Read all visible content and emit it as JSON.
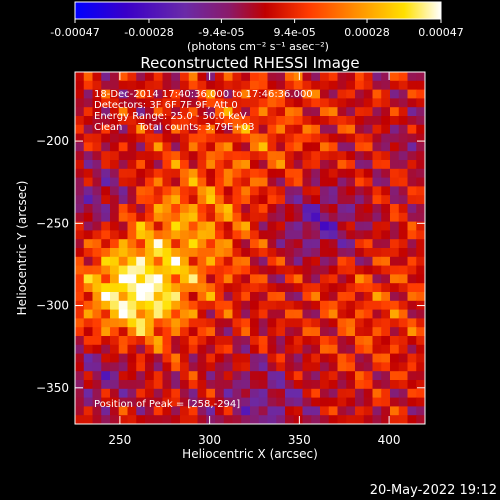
{
  "chart_data": {
    "type": "heatmap",
    "title": "Reconstructed RHESSI Image",
    "xlabel": "Heliocentric X (arcsec)",
    "ylabel": "Heliocentric Y (arcsec)",
    "xlim": [
      225,
      420
    ],
    "ylim": [
      -372,
      -158
    ],
    "x_ticks": [
      250,
      300,
      350,
      400
    ],
    "y_ticks": [
      -200,
      -250,
      -300,
      -350
    ],
    "colorbar": {
      "ticks": [
        "-0.00047",
        "-0.00028",
        "-9.4e-05",
        "9.4e-05",
        "0.00028",
        "0.00047"
      ],
      "tick_values": [
        -0.00047,
        -0.00028,
        -9.4e-05,
        9.4e-05,
        0.00028,
        0.00047
      ],
      "range": [
        -0.00047,
        0.00047
      ],
      "units": "(photons cm⁻² s⁻¹ asec⁻²)"
    },
    "annotations": [
      "18-Dec-2014 17:40:36.000 to 17:46:36.000",
      "Detectors: 3F 6F 7F 9F, Att 0",
      "Energy Range: 25.0 - 50.0 keV",
      "Clean     Total counts: 3.79E+03"
    ],
    "peak_label": "Position of Peak = [258,-294]",
    "peak": [
      258,
      -294
    ],
    "grid": false,
    "colormap": [
      "#0000ff",
      "#3a00c8",
      "#6a2aa8",
      "#8a1a6a",
      "#c00000",
      "#ff3c00",
      "#ff9600",
      "#ffe000",
      "#ffffff"
    ]
  },
  "timestamp": "20-May-2022 19:12"
}
